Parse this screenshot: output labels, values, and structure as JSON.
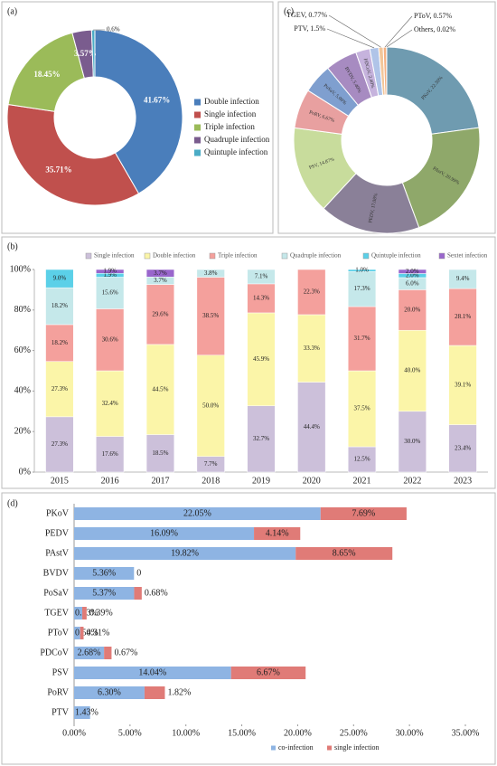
{
  "chart_data": [
    {
      "type": "donut",
      "tag": "(a)",
      "categories": [
        "Double infection",
        "Single infection",
        "Triple infection",
        "Quadruple infection",
        "Quintuple infection"
      ],
      "values": [
        41.67,
        35.71,
        18.45,
        3.57,
        0.6
      ],
      "value_labels": [
        "41.67%",
        "35.71%",
        "18.45%",
        "3.57%",
        "0.6%"
      ],
      "colors": [
        "#4a7ebb",
        "#c0504d",
        "#9bbb59",
        "#7a5c8e",
        "#4bacc6"
      ]
    },
    {
      "type": "stacked_bar",
      "tag": "(b)",
      "categories": [
        "2015",
        "2016",
        "2017",
        "2018",
        "2019",
        "2020",
        "2021",
        "2022",
        "2023"
      ],
      "ylim": [
        0,
        100
      ],
      "yticks": [
        {
          "value": 0,
          "label": "0%"
        },
        {
          "value": 20,
          "label": "20%"
        },
        {
          "value": 40,
          "label": "40%"
        },
        {
          "value": 60,
          "label": "60%"
        },
        {
          "value": 80,
          "label": "80%"
        },
        {
          "value": 100,
          "label": "100%"
        }
      ],
      "series": [
        {
          "name": "Single infection",
          "color": "#ccc0da",
          "values": [
            27.3,
            17.6,
            18.5,
            7.7,
            32.7,
            44.4,
            12.5,
            30.0,
            23.4
          ],
          "value_labels": [
            "27.3%",
            "17.6%",
            "18.5%",
            "7.7%",
            "32.7%",
            "44.4%",
            "12.5%",
            "30.0%",
            "23.4%"
          ]
        },
        {
          "name": "Double infection",
          "color": "#fbf5a8",
          "values": [
            27.3,
            32.4,
            44.5,
            50.0,
            45.9,
            33.3,
            37.5,
            40.0,
            39.1
          ],
          "value_labels": [
            "27.3%",
            "32.4%",
            "44.5%",
            "50.0%",
            "45.9%",
            "33.3%",
            "37.5%",
            "40.0%",
            "39.1%"
          ]
        },
        {
          "name": "Triple infection",
          "color": "#f4a09c",
          "values": [
            18.2,
            30.6,
            29.6,
            38.5,
            14.3,
            22.3,
            31.7,
            20.0,
            28.1
          ],
          "value_labels": [
            "18.2%",
            "30.6%",
            "29.6%",
            "38.5%",
            "14.3%",
            "22.3%",
            "31.7%",
            "20.0%",
            "28.1%"
          ]
        },
        {
          "name": "Quadruple infection",
          "color": "#c5e8ea",
          "values": [
            18.2,
            15.6,
            3.7,
            3.8,
            7.1,
            null,
            17.3,
            6.0,
            9.4
          ],
          "value_labels": [
            "18.2%",
            "15.6%",
            "3.7%",
            "3.8%",
            "7.1%",
            null,
            "17.3%",
            "6.0%",
            "9.4%"
          ]
        },
        {
          "name": "Quintuple infection",
          "color": "#5bd0e8",
          "values": [
            9.0,
            1.9,
            null,
            null,
            null,
            null,
            1.0,
            2.0,
            null
          ],
          "value_labels": [
            "9.0%",
            "1.9%",
            null,
            null,
            null,
            null,
            "1.0%",
            "2.0%",
            null
          ]
        },
        {
          "name": "Sextet infection",
          "color": "#9966cc",
          "values": [
            null,
            1.9,
            3.7,
            null,
            null,
            null,
            null,
            2.0,
            null
          ],
          "value_labels": [
            null,
            "1.9%",
            "3.7%",
            null,
            null,
            null,
            null,
            "2.0%",
            null
          ]
        }
      ]
    },
    {
      "type": "donut",
      "tag": "(c)",
      "values": [
        22.3,
        20.99,
        17.08,
        14.87,
        6.67,
        5.0,
        5.4,
        2.4,
        1.5,
        0.77,
        0.57,
        0.02
      ],
      "value_labels": [
        "PKoV, 22.30%",
        "PAstV, 20.99%",
        "PEDV, 17.08%",
        "PSV, 14.87%",
        "PoRV, 6.67%",
        "PoSaV, 5.00%",
        "BVDV, 5.40%",
        "PDCoV, 2.40%",
        "PTV, 1.5%",
        "TGEV, 0.77%",
        "PToV, 0.57%",
        "Others, 0.02%"
      ],
      "colors": [
        "#6f9bb0",
        "#8fa86a",
        "#8a8098",
        "#c8dc9c",
        "#e8a0a0",
        "#7f9fcf",
        "#a78bc1",
        "#c6b3dd",
        "#b0c4e8",
        "#f2c69a",
        "#f4b183",
        "#d9d9d9"
      ]
    },
    {
      "type": "stacked_barh",
      "tag": "(d)",
      "categories": [
        "PKoV",
        "PEDV",
        "PAstV",
        "BVDV",
        "PoSaV",
        "TGEV",
        "PToV",
        "PDCoV",
        "PSV",
        "PoRV",
        "PTV"
      ],
      "xlim": [
        0,
        35
      ],
      "xticks": [
        {
          "value": 0,
          "label": "0.00%"
        },
        {
          "value": 5,
          "label": "5.00%"
        },
        {
          "value": 10,
          "label": "10.00%"
        },
        {
          "value": 15,
          "label": "15.00%"
        },
        {
          "value": 20,
          "label": "20.00%"
        },
        {
          "value": 25,
          "label": "25.00%"
        },
        {
          "value": 30,
          "label": "30.00%"
        },
        {
          "value": 35,
          "label": "35.00%"
        }
      ],
      "series": [
        {
          "name": "co-infection",
          "color": "#8eb4e3",
          "values": [
            22.05,
            16.09,
            19.82,
            5.36,
            5.37,
            0.73,
            0.54,
            2.68,
            14.04,
            6.3,
            1.43
          ],
          "value_labels": [
            "22.05%",
            "16.09%",
            "19.82%",
            "5.36%",
            "5.37%",
            "0.73%",
            "0.54%",
            "2.68%",
            "14.04%",
            "6.30%",
            "1.43%"
          ]
        },
        {
          "name": "single infection",
          "color": "#e07b77",
          "values": [
            7.69,
            4.14,
            8.65,
            0,
            0.68,
            0.39,
            0.31,
            0.67,
            6.67,
            1.82,
            null
          ],
          "value_labels": [
            "7.69%",
            "4.14%",
            "8.65%",
            "0",
            "0.68%",
            "0.39%",
            "0.31%",
            "0.67%",
            "6.67%",
            "1.82%",
            null
          ]
        }
      ]
    }
  ]
}
